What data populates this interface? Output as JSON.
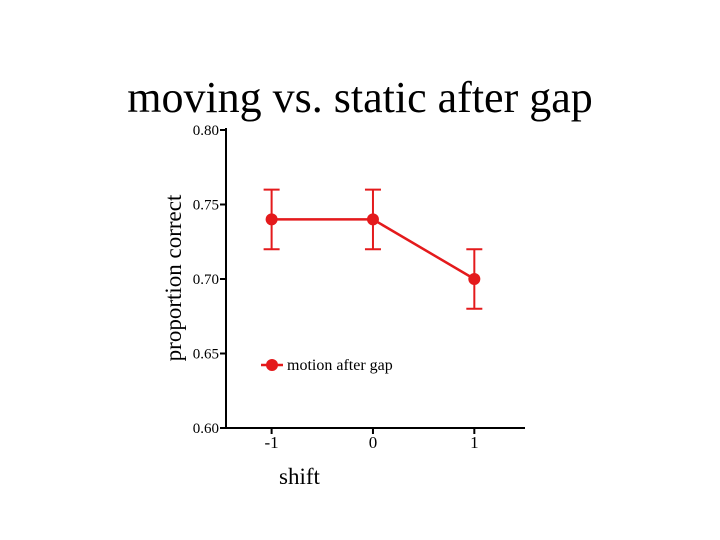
{
  "slide": {
    "title": "moving vs. static after gap"
  },
  "chart_data": {
    "type": "line",
    "title": "moving vs. static after gap",
    "xlabel": "shift",
    "ylabel": "proportion correct",
    "x": [
      -1,
      0,
      1
    ],
    "x_tick_labels": [
      "-1",
      "0",
      "1"
    ],
    "y_ticks": [
      0.6,
      0.65,
      0.7,
      0.75,
      0.8
    ],
    "y_tick_labels": [
      "0.60",
      "0.65",
      "0.70",
      "0.75",
      "0.80"
    ],
    "xlim": [
      -1.45,
      1.5
    ],
    "ylim": [
      0.6,
      0.8
    ],
    "grid": false,
    "legend_position": "lower-left",
    "series": [
      {
        "name": "motion after gap",
        "color": "#e41a1c",
        "marker": "circle",
        "values": [
          0.74,
          0.74,
          0.7
        ],
        "error": [
          0.02,
          0.02,
          0.02
        ]
      }
    ]
  }
}
